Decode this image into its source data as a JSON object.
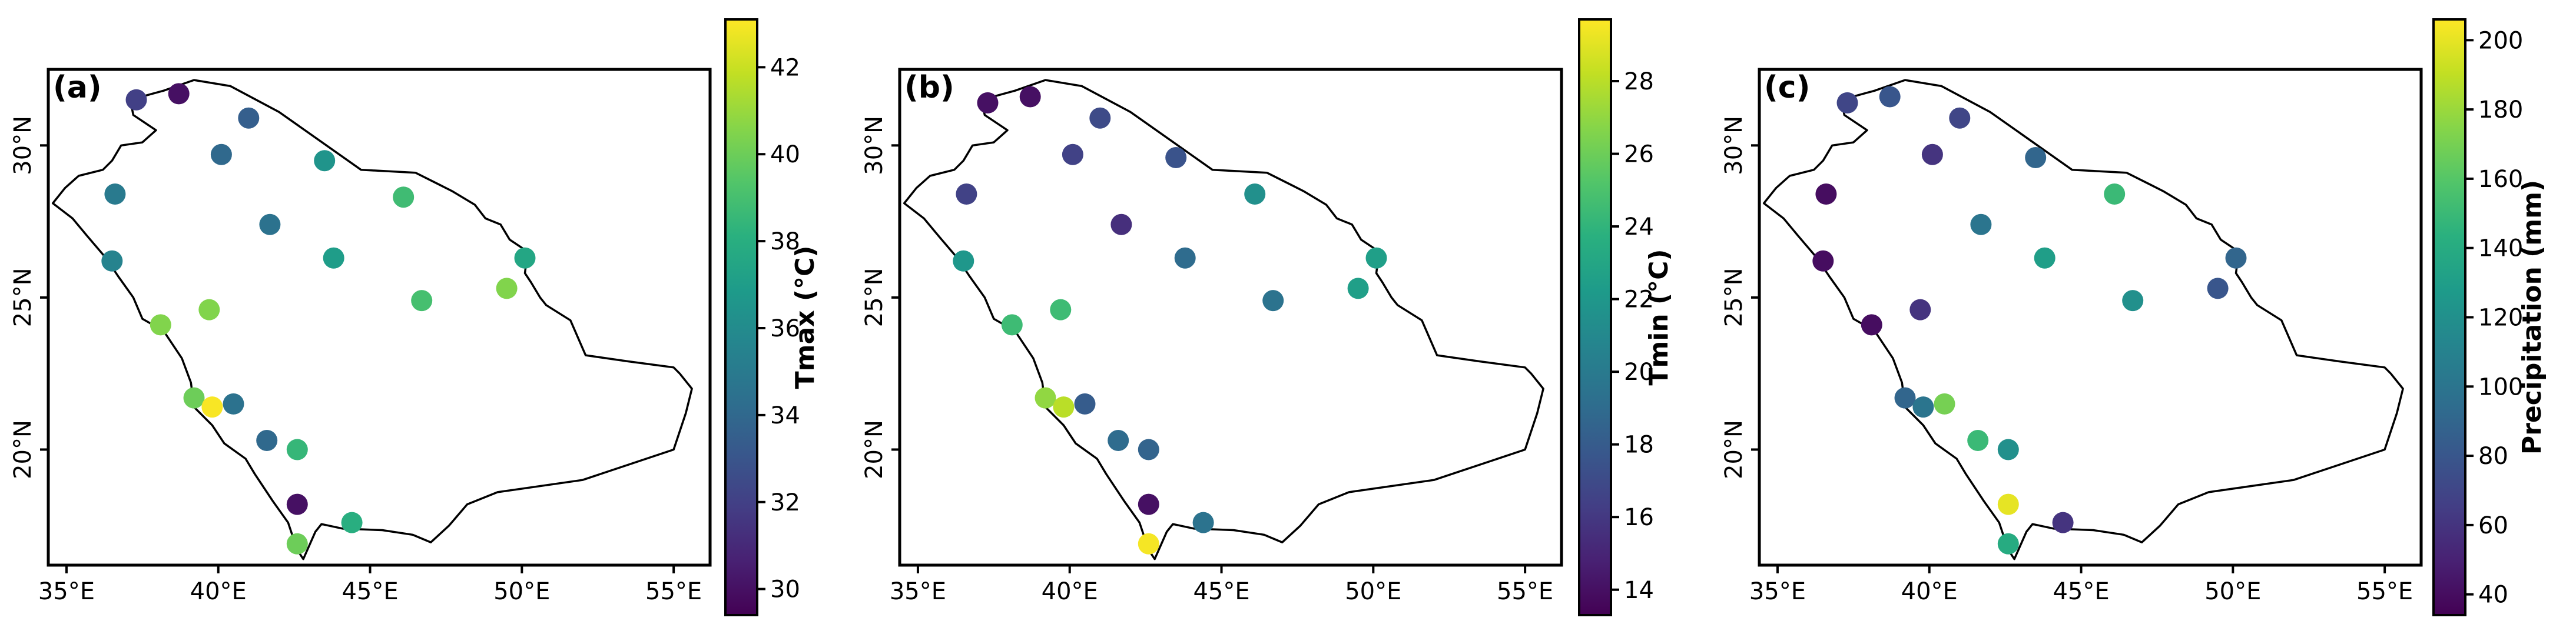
{
  "figure": {
    "panels": [
      {
        "id": "a",
        "label": "(a)",
        "colorbar": {
          "title": "Tmax (°C)",
          "min": 29.4,
          "max": 43.1,
          "ticks": [
            30,
            32,
            34,
            36,
            38,
            40,
            42
          ]
        },
        "stations": [
          {
            "lon": 37.3,
            "lat": 31.5,
            "value": 32.0
          },
          {
            "lon": 38.7,
            "lat": 31.7,
            "value": 30.0
          },
          {
            "lon": 41.0,
            "lat": 30.9,
            "value": 33.5
          },
          {
            "lon": 40.1,
            "lat": 29.7,
            "value": 34.0
          },
          {
            "lon": 43.5,
            "lat": 29.5,
            "value": 36.5
          },
          {
            "lon": 36.6,
            "lat": 28.4,
            "value": 35.0
          },
          {
            "lon": 46.1,
            "lat": 28.3,
            "value": 38.8
          },
          {
            "lon": 41.7,
            "lat": 27.4,
            "value": 34.5
          },
          {
            "lon": 43.8,
            "lat": 26.3,
            "value": 37.0
          },
          {
            "lon": 50.1,
            "lat": 26.3,
            "value": 37.5
          },
          {
            "lon": 36.5,
            "lat": 26.2,
            "value": 35.5
          },
          {
            "lon": 46.7,
            "lat": 24.9,
            "value": 39.0
          },
          {
            "lon": 49.5,
            "lat": 25.3,
            "value": 40.5
          },
          {
            "lon": 39.7,
            "lat": 24.6,
            "value": 40.5
          },
          {
            "lon": 38.1,
            "lat": 24.1,
            "value": 40.5
          },
          {
            "lon": 39.2,
            "lat": 21.7,
            "value": 40.0
          },
          {
            "lon": 39.8,
            "lat": 21.4,
            "value": 43.0
          },
          {
            "lon": 40.5,
            "lat": 21.5,
            "value": 34.5
          },
          {
            "lon": 41.6,
            "lat": 20.3,
            "value": 34.0
          },
          {
            "lon": 42.6,
            "lat": 20.0,
            "value": 38.5
          },
          {
            "lon": 42.6,
            "lat": 18.2,
            "value": 30.0
          },
          {
            "lon": 44.4,
            "lat": 17.6,
            "value": 38.0
          },
          {
            "lon": 42.6,
            "lat": 16.9,
            "value": 40.0
          }
        ]
      },
      {
        "id": "b",
        "label": "(b)",
        "colorbar": {
          "title": "Tmin (°C)",
          "min": 13.3,
          "max": 29.7,
          "ticks": [
            14,
            16,
            18,
            20,
            22,
            24,
            26,
            28
          ]
        },
        "stations": [
          {
            "lon": 37.3,
            "lat": 31.4,
            "value": 14.0
          },
          {
            "lon": 38.7,
            "lat": 31.6,
            "value": 14.0
          },
          {
            "lon": 41.0,
            "lat": 30.9,
            "value": 17.0
          },
          {
            "lon": 40.1,
            "lat": 29.7,
            "value": 16.5
          },
          {
            "lon": 43.5,
            "lat": 29.6,
            "value": 17.5
          },
          {
            "lon": 36.6,
            "lat": 28.4,
            "value": 16.5
          },
          {
            "lon": 46.1,
            "lat": 28.4,
            "value": 21.5
          },
          {
            "lon": 41.7,
            "lat": 27.4,
            "value": 15.5
          },
          {
            "lon": 43.8,
            "lat": 26.3,
            "value": 19.0
          },
          {
            "lon": 50.1,
            "lat": 26.3,
            "value": 22.5
          },
          {
            "lon": 36.5,
            "lat": 26.2,
            "value": 22.0
          },
          {
            "lon": 46.7,
            "lat": 24.9,
            "value": 19.5
          },
          {
            "lon": 49.5,
            "lat": 25.3,
            "value": 22.5
          },
          {
            "lon": 39.7,
            "lat": 24.6,
            "value": 24.5
          },
          {
            "lon": 38.1,
            "lat": 24.1,
            "value": 24.5
          },
          {
            "lon": 39.2,
            "lat": 21.7,
            "value": 27.0
          },
          {
            "lon": 39.8,
            "lat": 21.4,
            "value": 28.0
          },
          {
            "lon": 40.5,
            "lat": 21.5,
            "value": 18.0
          },
          {
            "lon": 41.6,
            "lat": 20.3,
            "value": 19.0
          },
          {
            "lon": 42.6,
            "lat": 20.0,
            "value": 18.5
          },
          {
            "lon": 42.6,
            "lat": 18.2,
            "value": 14.0
          },
          {
            "lon": 44.4,
            "lat": 17.6,
            "value": 19.5
          },
          {
            "lon": 42.6,
            "lat": 16.9,
            "value": 29.5
          }
        ]
      },
      {
        "id": "c",
        "label": "(c)",
        "colorbar": {
          "title": "Precipitation (mm)",
          "min": 34,
          "max": 206,
          "ticks": [
            40,
            60,
            80,
            100,
            120,
            140,
            160,
            180,
            200
          ]
        },
        "stations": [
          {
            "lon": 37.3,
            "lat": 31.4,
            "value": 70
          },
          {
            "lon": 38.7,
            "lat": 31.6,
            "value": 80
          },
          {
            "lon": 41.0,
            "lat": 30.9,
            "value": 70
          },
          {
            "lon": 40.1,
            "lat": 29.7,
            "value": 60
          },
          {
            "lon": 43.5,
            "lat": 29.6,
            "value": 90
          },
          {
            "lon": 36.6,
            "lat": 28.4,
            "value": 40
          },
          {
            "lon": 46.1,
            "lat": 28.4,
            "value": 150
          },
          {
            "lon": 41.7,
            "lat": 27.4,
            "value": 100
          },
          {
            "lon": 43.8,
            "lat": 26.3,
            "value": 130
          },
          {
            "lon": 50.1,
            "lat": 26.3,
            "value": 90
          },
          {
            "lon": 36.5,
            "lat": 26.2,
            "value": 40
          },
          {
            "lon": 46.7,
            "lat": 24.9,
            "value": 120
          },
          {
            "lon": 49.5,
            "lat": 25.3,
            "value": 80
          },
          {
            "lon": 39.7,
            "lat": 24.6,
            "value": 60
          },
          {
            "lon": 38.1,
            "lat": 24.1,
            "value": 40
          },
          {
            "lon": 39.2,
            "lat": 21.7,
            "value": 90
          },
          {
            "lon": 39.8,
            "lat": 21.4,
            "value": 100
          },
          {
            "lon": 40.5,
            "lat": 21.5,
            "value": 170
          },
          {
            "lon": 41.6,
            "lat": 20.3,
            "value": 150
          },
          {
            "lon": 42.6,
            "lat": 20.0,
            "value": 120
          },
          {
            "lon": 42.6,
            "lat": 18.2,
            "value": 200
          },
          {
            "lon": 44.4,
            "lat": 17.6,
            "value": 60
          },
          {
            "lon": 42.6,
            "lat": 16.9,
            "value": 140
          }
        ]
      }
    ],
    "map_extent": {
      "lon": [
        34.4,
        56.2
      ],
      "lat": [
        16.2,
        32.5
      ]
    },
    "xticks": [
      {
        "value": 35,
        "label": "35°E"
      },
      {
        "value": 40,
        "label": "40°E"
      },
      {
        "value": 45,
        "label": "45°E"
      },
      {
        "value": 50,
        "label": "50°E"
      },
      {
        "value": 55,
        "label": "55°E"
      }
    ],
    "yticks": [
      {
        "value": 20,
        "label": "20°N"
      },
      {
        "value": 25,
        "label": "25°N"
      },
      {
        "value": 30,
        "label": "30°N"
      }
    ],
    "colormap": "viridis",
    "boundary_color": "#000000"
  }
}
